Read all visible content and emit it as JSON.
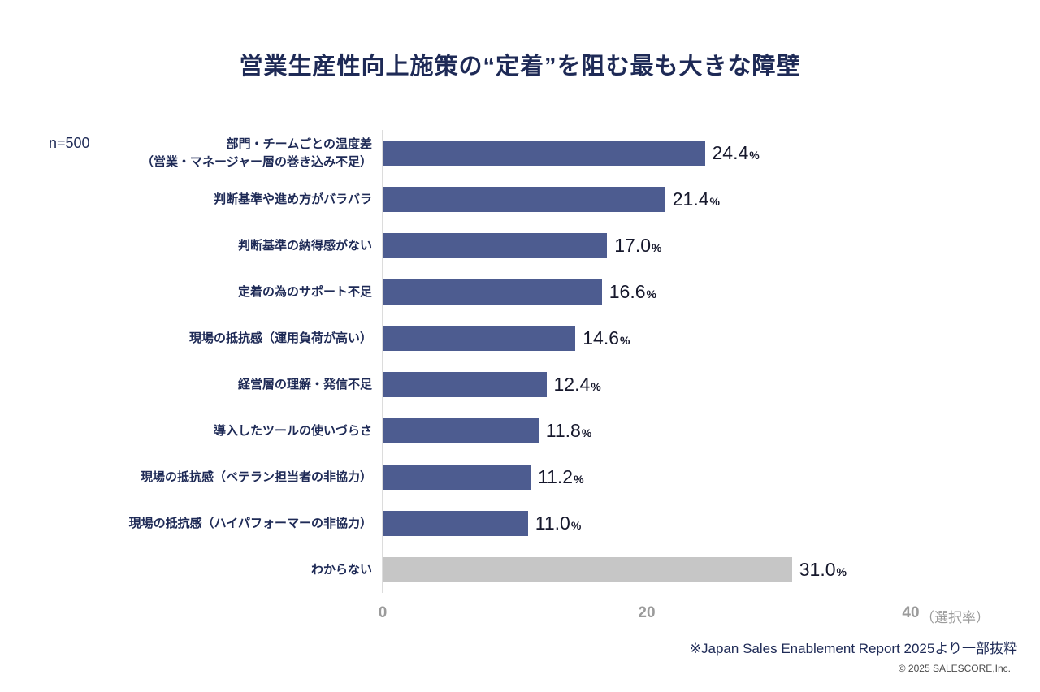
{
  "header": {
    "title": "営業生産性向上施策の“定着”を阻む最も大きな障壁",
    "sample_label": "n=500"
  },
  "axis": {
    "suffix": "（選択率）"
  },
  "footer": {
    "footnote": "※Japan Sales Enablement Report 2025より一部抜粋",
    "copyright": "© 2025 SALESCORE,Inc."
  },
  "chart_data": {
    "type": "bar",
    "orientation": "horizontal",
    "title": "営業生産性向上施策の“定着”を阻む最も大きな障壁",
    "sample_size": "n=500",
    "categories": [
      "部門・チームごとの温度差\n（営業・マネージャー層の巻き込み不足）",
      "判断基準や進め方がバラバラ",
      "判断基準の納得感がない",
      "定着の為のサポート不足",
      "現場の抵抗感（運用負荷が高い）",
      "経営層の理解・発信不足",
      "導入したツールの使いづらさ",
      "現場の抵抗感（ベテラン担当者の非協力）",
      "現場の抵抗感（ハイパフォーマーの非協力）",
      "わからない"
    ],
    "values": [
      24.4,
      21.4,
      17.0,
      16.6,
      14.6,
      12.4,
      11.8,
      11.2,
      11.0,
      31.0
    ],
    "value_suffix": "%",
    "xlabel": "（選択率）",
    "xlim": [
      0,
      40
    ],
    "x_ticks": [
      0,
      20,
      40
    ],
    "grid": false,
    "legend": "none",
    "colors": {
      "bar": "#4d5c90",
      "unknown_bar": "#c6c6c6",
      "title_text": "#1e2a56",
      "tick_text": "#9b9b9b"
    }
  }
}
